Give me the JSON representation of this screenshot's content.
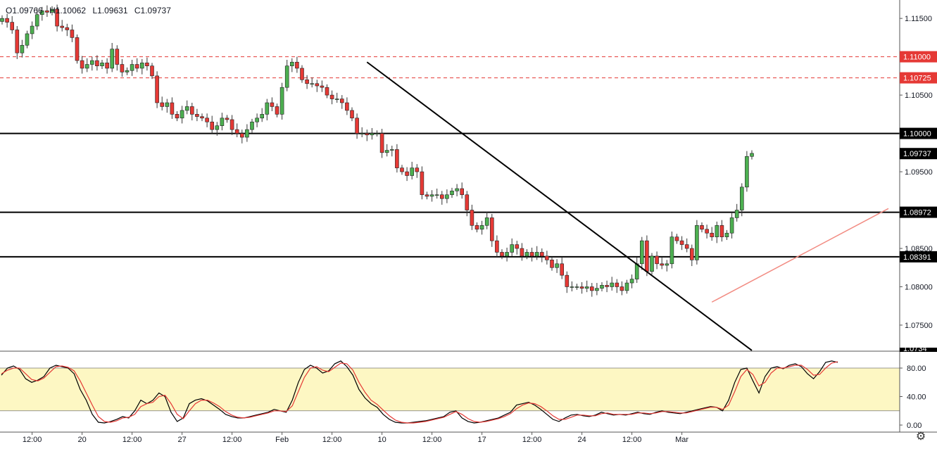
{
  "header": {
    "open": "O1.09766",
    "high": "H1.10062",
    "low": "L1.09631",
    "close": "C1.09737"
  },
  "price_axis": {
    "ticks": [
      "1.11500",
      "1.11000",
      "1.10500",
      "1.10000",
      "1.09500",
      "1.09000",
      "1.08500",
      "1.08000",
      "1.07500"
    ],
    "tick_values": [
      1.115,
      1.11,
      1.105,
      1.1,
      1.095,
      1.09,
      1.085,
      1.08,
      1.075
    ],
    "range": [
      1.0716,
      1.1174
    ]
  },
  "levels": [
    {
      "value": 1.11,
      "label": "1.11000",
      "style": "dashed",
      "color": "#e53935"
    },
    {
      "value": 1.10725,
      "label": "1.10725",
      "style": "dashed",
      "color": "#e53935"
    },
    {
      "value": 1.1,
      "label": "1.10000",
      "style": "solid",
      "color": "#000000"
    },
    {
      "value": 1.08972,
      "label": "1.08972",
      "style": "solid",
      "color": "#000000"
    },
    {
      "value": 1.08391,
      "label": "1.08391",
      "style": "solid",
      "color": "#000000"
    }
  ],
  "last_price": {
    "value": 1.09737,
    "label": "1.09737"
  },
  "partial_label": "1.0734",
  "time_axis": {
    "labels": [
      "12:00",
      "20",
      "12:00",
      "27",
      "12:00",
      "Feb",
      "12:00",
      "10",
      "12:00",
      "17",
      "12:00",
      "24",
      "12:00",
      "Mar"
    ],
    "positions": [
      6,
      16,
      26,
      36,
      46,
      56,
      66,
      76,
      86,
      96,
      106,
      116,
      126,
      136
    ]
  },
  "oscillator": {
    "ticks": [
      "80.00",
      "40.00",
      "0.00"
    ],
    "tick_values": [
      80,
      40,
      0
    ],
    "overbought": 80,
    "oversold": 20,
    "band_color": "#fdf7c3",
    "k_color": "#000000",
    "d_color": "#e53935",
    "k_values": [
      70,
      80,
      83,
      78,
      65,
      60,
      63,
      68,
      80,
      84,
      82,
      80,
      72,
      50,
      35,
      15,
      4,
      3,
      5,
      8,
      12,
      10,
      20,
      35,
      30,
      35,
      45,
      40,
      18,
      5,
      10,
      30,
      35,
      37,
      34,
      28,
      22,
      15,
      12,
      10,
      10,
      12,
      14,
      16,
      18,
      22,
      20,
      18,
      35,
      60,
      78,
      84,
      80,
      73,
      76,
      86,
      90,
      82,
      70,
      50,
      38,
      30,
      25,
      15,
      8,
      4,
      3,
      3,
      4,
      5,
      6,
      8,
      10,
      12,
      18,
      20,
      10,
      5,
      3,
      4,
      6,
      8,
      10,
      14,
      18,
      28,
      30,
      32,
      28,
      22,
      15,
      8,
      5,
      10,
      14,
      15,
      13,
      12,
      14,
      18,
      16,
      14,
      15,
      14,
      16,
      18,
      16,
      15,
      18,
      20,
      18,
      17,
      16,
      18,
      20,
      22,
      24,
      26,
      25,
      20,
      35,
      60,
      78,
      80,
      62,
      45,
      68,
      80,
      82,
      79,
      84,
      86,
      82,
      72,
      65,
      75,
      88,
      90,
      88
    ],
    "d_values": [
      72,
      77,
      80,
      80,
      72,
      64,
      62,
      66,
      74,
      82,
      83,
      81,
      76,
      62,
      45,
      28,
      12,
      5,
      4,
      6,
      10,
      11,
      15,
      26,
      30,
      32,
      40,
      42,
      30,
      15,
      9,
      20,
      30,
      35,
      35,
      31,
      26,
      19,
      14,
      11,
      10,
      11,
      13,
      15,
      17,
      20,
      20,
      19,
      27,
      47,
      67,
      80,
      82,
      77,
      75,
      81,
      87,
      86,
      77,
      60,
      46,
      35,
      29,
      21,
      13,
      7,
      4,
      3,
      3,
      4,
      5,
      7,
      9,
      11,
      15,
      19,
      15,
      9,
      5,
      4,
      5,
      7,
      9,
      12,
      16,
      23,
      28,
      31,
      30,
      26,
      20,
      13,
      8,
      8,
      11,
      14,
      14,
      13,
      13,
      16,
      17,
      15,
      15,
      15,
      15,
      17,
      17,
      16,
      17,
      19,
      19,
      18,
      17,
      17,
      19,
      21,
      23,
      25,
      25,
      22,
      28,
      47,
      68,
      78,
      71,
      55,
      60,
      73,
      80,
      80,
      82,
      84,
      84,
      78,
      70,
      71,
      80,
      87,
      89
    ]
  },
  "chart_data": {
    "type": "candlestick",
    "title": "",
    "xlabel": "",
    "ylabel": "",
    "ylim": [
      1.0716,
      1.1174
    ],
    "x_labels": [
      "12:00",
      "20",
      "12:00",
      "27",
      "12:00",
      "Feb",
      "12:00",
      "10",
      "12:00",
      "17",
      "12:00",
      "24",
      "12:00",
      "Mar"
    ],
    "closes": [
      1.115,
      1.1145,
      1.1135,
      1.1105,
      1.1115,
      1.113,
      1.114,
      1.1155,
      1.116,
      1.1158,
      1.1162,
      1.114,
      1.1138,
      1.1135,
      1.1125,
      1.1095,
      1.1085,
      1.109,
      1.1095,
      1.1088,
      1.1092,
      1.1085,
      1.111,
      1.109,
      1.108,
      1.1082,
      1.109,
      1.1085,
      1.1092,
      1.1088,
      1.1075,
      1.104,
      1.1035,
      1.104,
      1.1025,
      1.102,
      1.103,
      1.1035,
      1.1025,
      1.1022,
      1.102,
      1.1015,
      1.1005,
      1.101,
      1.102,
      1.1018,
      1.1005,
      1.1,
      1.0995,
      1.1005,
      1.1015,
      1.102,
      1.1025,
      1.104,
      1.1035,
      1.1025,
      1.106,
      1.1088,
      1.1093,
      1.1085,
      1.107,
      1.1065,
      1.1065,
      1.1062,
      1.106,
      1.105,
      1.1045,
      1.1045,
      1.104,
      1.103,
      1.102,
      1.1,
      1.1,
      1.0998,
      1.1,
      1.1,
      1.0975,
      1.0978,
      1.0979,
      1.0955,
      1.095,
      1.0945,
      1.0955,
      1.095,
      1.092,
      1.0918,
      1.092,
      1.092,
      1.0915,
      1.092,
      1.0925,
      1.0928,
      1.092,
      1.09,
      1.088,
      1.0875,
      1.088,
      1.089,
      1.086,
      1.0845,
      1.084,
      1.0845,
      1.0855,
      1.085,
      1.084,
      1.0845,
      1.084,
      1.0845,
      1.084,
      1.0835,
      1.0825,
      1.083,
      1.0815,
      1.08,
      1.08,
      1.08,
      1.0798,
      1.08,
      1.0795,
      1.0798,
      1.0802,
      1.08,
      1.0805,
      1.08,
      1.0795,
      1.0805,
      1.081,
      1.083,
      1.086,
      1.082,
      1.084,
      1.083,
      1.0828,
      1.083,
      1.0865,
      1.086,
      1.0855,
      1.085,
      1.0835,
      1.088,
      1.0875,
      1.087,
      1.0865,
      1.088,
      1.0865,
      1.087,
      1.089,
      1.09,
      1.093,
      1.097,
      1.0974
    ]
  }
}
